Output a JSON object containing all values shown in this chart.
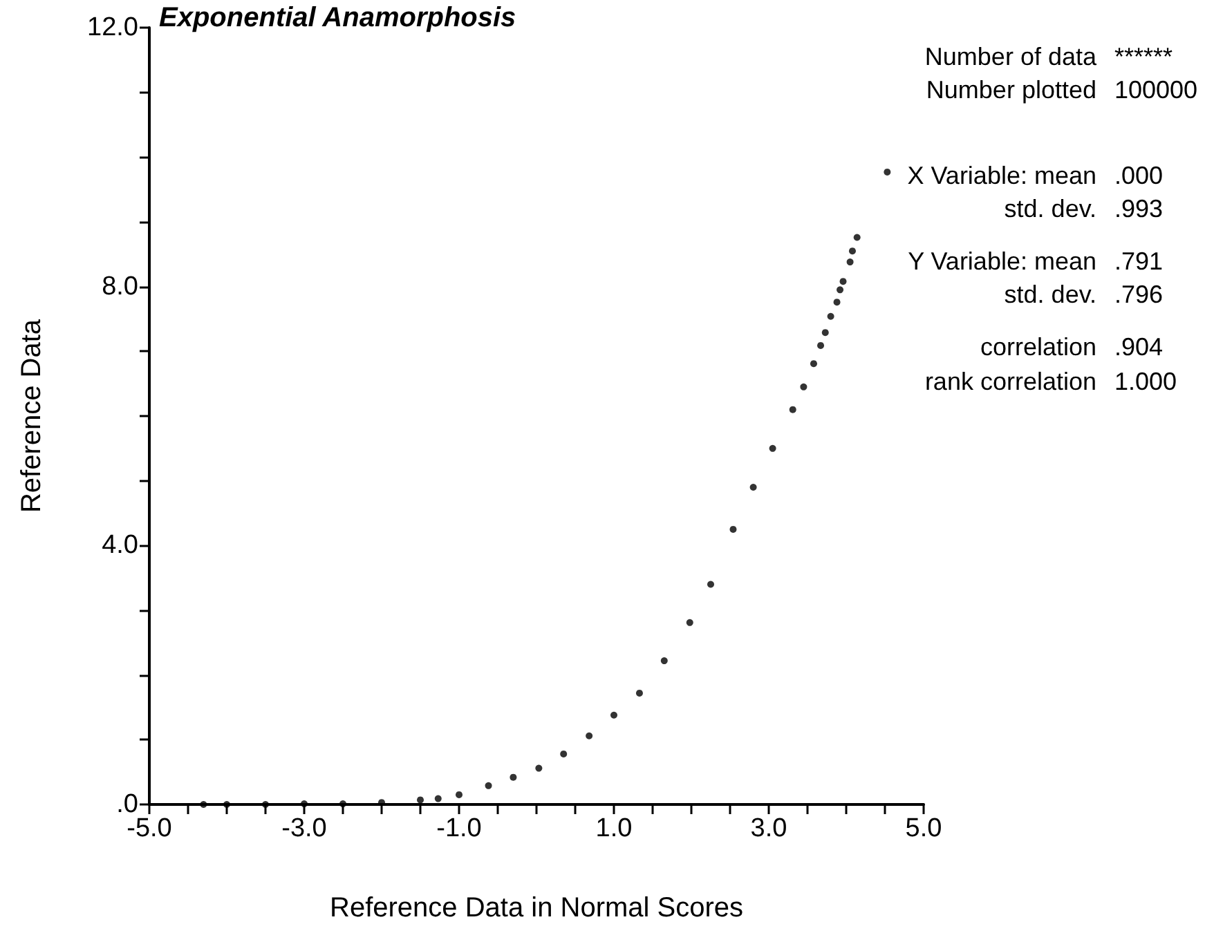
{
  "chart_data": {
    "type": "scatter",
    "title": "Exponential Anamorphosis",
    "xlabel": "Reference Data in Normal Scores",
    "ylabel": "Reference Data",
    "x": [
      -4.3,
      -4.0,
      -3.5,
      -3.0,
      -2.5,
      -2.0,
      -1.5,
      -1.27,
      -1.0,
      -0.62,
      -0.3,
      0.03,
      0.35,
      0.68,
      1.0,
      1.33,
      1.65,
      1.98,
      2.25,
      2.54,
      2.8,
      3.05,
      3.31,
      3.45,
      3.58,
      3.67,
      3.73,
      3.8,
      3.88,
      3.92,
      3.96,
      4.05,
      4.08,
      4.14,
      4.53
    ],
    "values": [
      0.0,
      0.0,
      0.0,
      0.01,
      0.01,
      0.03,
      0.07,
      0.09,
      0.15,
      0.29,
      0.42,
      0.56,
      0.78,
      1.06,
      1.38,
      1.72,
      2.22,
      2.81,
      3.4,
      4.25,
      4.9,
      5.5,
      6.1,
      6.45,
      6.81,
      7.09,
      7.29,
      7.54,
      7.76,
      7.95,
      8.08,
      8.38,
      8.55,
      8.76,
      9.77
    ],
    "color": "#000000",
    "marker": "circle",
    "xlim": [
      -5,
      5
    ],
    "xticks": [
      {
        "value": -5,
        "label": "-5.0"
      },
      {
        "value": -4.5,
        "label": null
      },
      {
        "value": -4,
        "label": null
      },
      {
        "value": -3.5,
        "label": null
      },
      {
        "value": -3,
        "label": "-3.0"
      },
      {
        "value": -2.5,
        "label": null
      },
      {
        "value": -2,
        "label": null
      },
      {
        "value": -1.5,
        "label": null
      },
      {
        "value": -1,
        "label": "-1.0"
      },
      {
        "value": -0.5,
        "label": null
      },
      {
        "value": 0,
        "label": null
      },
      {
        "value": 0.5,
        "label": null
      },
      {
        "value": 1,
        "label": "1.0"
      },
      {
        "value": 1.5,
        "label": null
      },
      {
        "value": 2,
        "label": null
      },
      {
        "value": 2.5,
        "label": null
      },
      {
        "value": 3,
        "label": "3.0"
      },
      {
        "value": 3.5,
        "label": null
      },
      {
        "value": 4,
        "label": null
      },
      {
        "value": 4.5,
        "label": null
      },
      {
        "value": 5,
        "label": "5.0"
      }
    ],
    "ylim": [
      0,
      12
    ],
    "yticks": [
      {
        "value": 0,
        "label": ".0"
      },
      {
        "value": 1,
        "label": null
      },
      {
        "value": 2,
        "label": null
      },
      {
        "value": 3,
        "label": null
      },
      {
        "value": 4,
        "label": "4.0"
      },
      {
        "value": 5,
        "label": null
      },
      {
        "value": 6,
        "label": null
      },
      {
        "value": 7,
        "label": null
      },
      {
        "value": 8,
        "label": "8.0"
      },
      {
        "value": 9,
        "label": null
      },
      {
        "value": 10,
        "label": null
      },
      {
        "value": 11,
        "label": null
      },
      {
        "value": 12,
        "label": "12.0"
      }
    ],
    "annotations": [
      "Number of data ******",
      "Number plotted 100000",
      "X Variable: mean .000",
      "std. dev. .993",
      "Y Variable: mean .791",
      "std. dev. .796",
      "correlation .904",
      "rank correlation 1.000"
    ]
  }
}
